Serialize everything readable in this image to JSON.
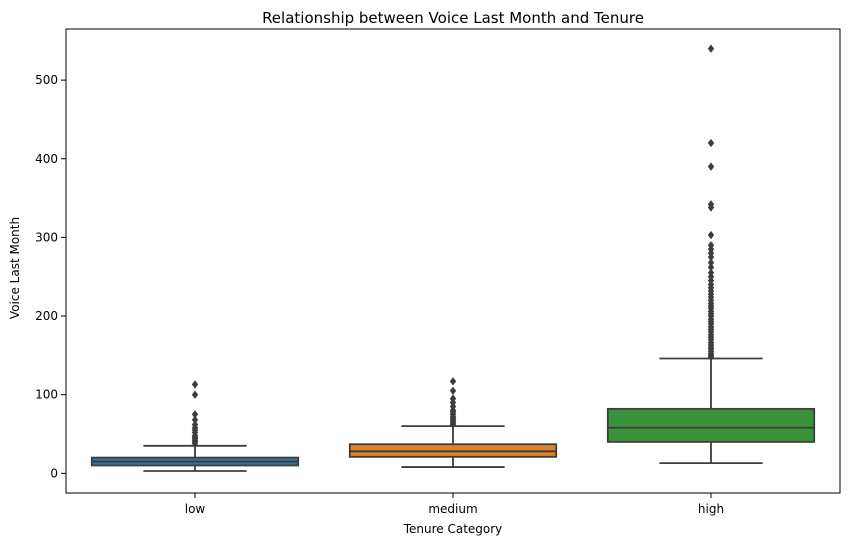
{
  "chart_data": {
    "type": "box",
    "title": "Relationship between Voice Last Month and Tenure",
    "xlabel": "Tenure Category",
    "ylabel": "Voice Last Month",
    "ylim": [
      -25,
      565
    ],
    "yticks": [
      0,
      100,
      200,
      300,
      400,
      500
    ],
    "grid": false,
    "categories": [
      "low",
      "medium",
      "high"
    ],
    "boxes": [
      {
        "category": "low",
        "color": "#3274a1",
        "whisker_low": 3,
        "q1": 10,
        "median": 15,
        "q3": 20,
        "whisker_high": 35,
        "outliers": [
          38,
          40,
          42,
          44,
          46,
          48,
          52,
          55,
          58,
          62,
          68,
          75,
          100,
          113
        ]
      },
      {
        "category": "medium",
        "color": "#e1812c",
        "whisker_low": 8,
        "q1": 21,
        "median": 28,
        "q3": 37,
        "whisker_high": 60,
        "outliers": [
          62,
          64,
          66,
          68,
          70,
          72,
          75,
          78,
          80,
          85,
          90,
          95,
          105,
          117
        ]
      },
      {
        "category": "high",
        "color": "#3a923a",
        "whisker_low": 13,
        "q1": 40,
        "median": 58,
        "q3": 82,
        "whisker_high": 146,
        "outliers": [
          148,
          150,
          152,
          155,
          158,
          160,
          163,
          166,
          170,
          173,
          176,
          180,
          183,
          186,
          190,
          193,
          196,
          200,
          203,
          206,
          210,
          213,
          216,
          220,
          224,
          228,
          232,
          236,
          240,
          245,
          250,
          255,
          262,
          268,
          275,
          280,
          285,
          290,
          303,
          338,
          342,
          390,
          420,
          540
        ]
      }
    ]
  }
}
